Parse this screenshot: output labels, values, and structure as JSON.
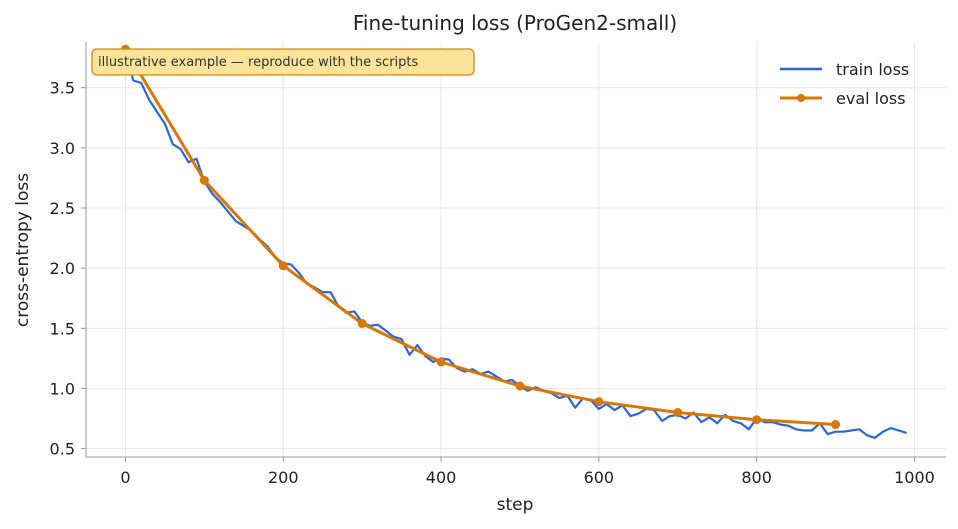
{
  "chart_data": {
    "type": "line",
    "title": "Fine-tuning loss (ProGen2-small)",
    "xlabel": "step",
    "ylabel": "cross-entropy loss",
    "xlim": [
      -50,
      1040
    ],
    "ylim": [
      0.43,
      3.88
    ],
    "xticks": [
      0,
      200,
      400,
      600,
      800,
      1000
    ],
    "yticks": [
      0.5,
      1.0,
      1.5,
      2.0,
      2.5,
      3.0,
      3.5
    ],
    "grid": true,
    "legend": "top-right",
    "annotation": "illustrative example — reproduce with the scripts",
    "series": [
      {
        "name": "train loss",
        "color": "#2b67d8",
        "marker": "none",
        "x": [
          0,
          10,
          20,
          30,
          40,
          50,
          60,
          70,
          80,
          90,
          100,
          110,
          120,
          130,
          140,
          150,
          160,
          170,
          180,
          190,
          200,
          210,
          220,
          230,
          240,
          250,
          260,
          270,
          280,
          290,
          300,
          310,
          320,
          330,
          340,
          350,
          360,
          370,
          380,
          390,
          400,
          410,
          420,
          430,
          440,
          450,
          460,
          470,
          480,
          490,
          500,
          510,
          520,
          530,
          540,
          550,
          560,
          570,
          580,
          590,
          600,
          610,
          620,
          630,
          640,
          650,
          660,
          670,
          680,
          690,
          700,
          710,
          720,
          730,
          740,
          750,
          760,
          770,
          780,
          790,
          800,
          810,
          820,
          830,
          840,
          850,
          860,
          870,
          880,
          890,
          900,
          910,
          920,
          930,
          940,
          950,
          960,
          970,
          980,
          990
        ],
        "y": [
          3.8,
          3.56,
          3.54,
          3.4,
          3.3,
          3.2,
          3.03,
          2.99,
          2.88,
          2.91,
          2.72,
          2.62,
          2.55,
          2.47,
          2.39,
          2.35,
          2.31,
          2.24,
          2.18,
          2.09,
          2.04,
          2.03,
          1.96,
          1.87,
          1.84,
          1.8,
          1.8,
          1.68,
          1.63,
          1.64,
          1.55,
          1.52,
          1.53,
          1.48,
          1.43,
          1.41,
          1.28,
          1.36,
          1.27,
          1.22,
          1.25,
          1.24,
          1.17,
          1.14,
          1.16,
          1.12,
          1.14,
          1.1,
          1.06,
          1.07,
          1.02,
          0.98,
          1.01,
          0.98,
          0.96,
          0.92,
          0.94,
          0.84,
          0.92,
          0.9,
          0.83,
          0.87,
          0.82,
          0.86,
          0.77,
          0.79,
          0.83,
          0.82,
          0.73,
          0.77,
          0.78,
          0.75,
          0.8,
          0.72,
          0.76,
          0.71,
          0.78,
          0.73,
          0.71,
          0.66,
          0.75,
          0.72,
          0.72,
          0.7,
          0.69,
          0.66,
          0.65,
          0.65,
          0.71,
          0.62,
          0.64,
          0.64,
          0.65,
          0.66,
          0.61,
          0.59,
          0.64,
          0.67,
          0.65,
          0.63
        ]
      },
      {
        "name": "eval loss",
        "color": "#d97706",
        "marker": "circle",
        "x": [
          0,
          100,
          200,
          300,
          400,
          500,
          600,
          700,
          800,
          900
        ],
        "y": [
          3.82,
          2.73,
          2.02,
          1.54,
          1.22,
          1.02,
          0.89,
          0.8,
          0.74,
          0.7
        ]
      }
    ]
  }
}
